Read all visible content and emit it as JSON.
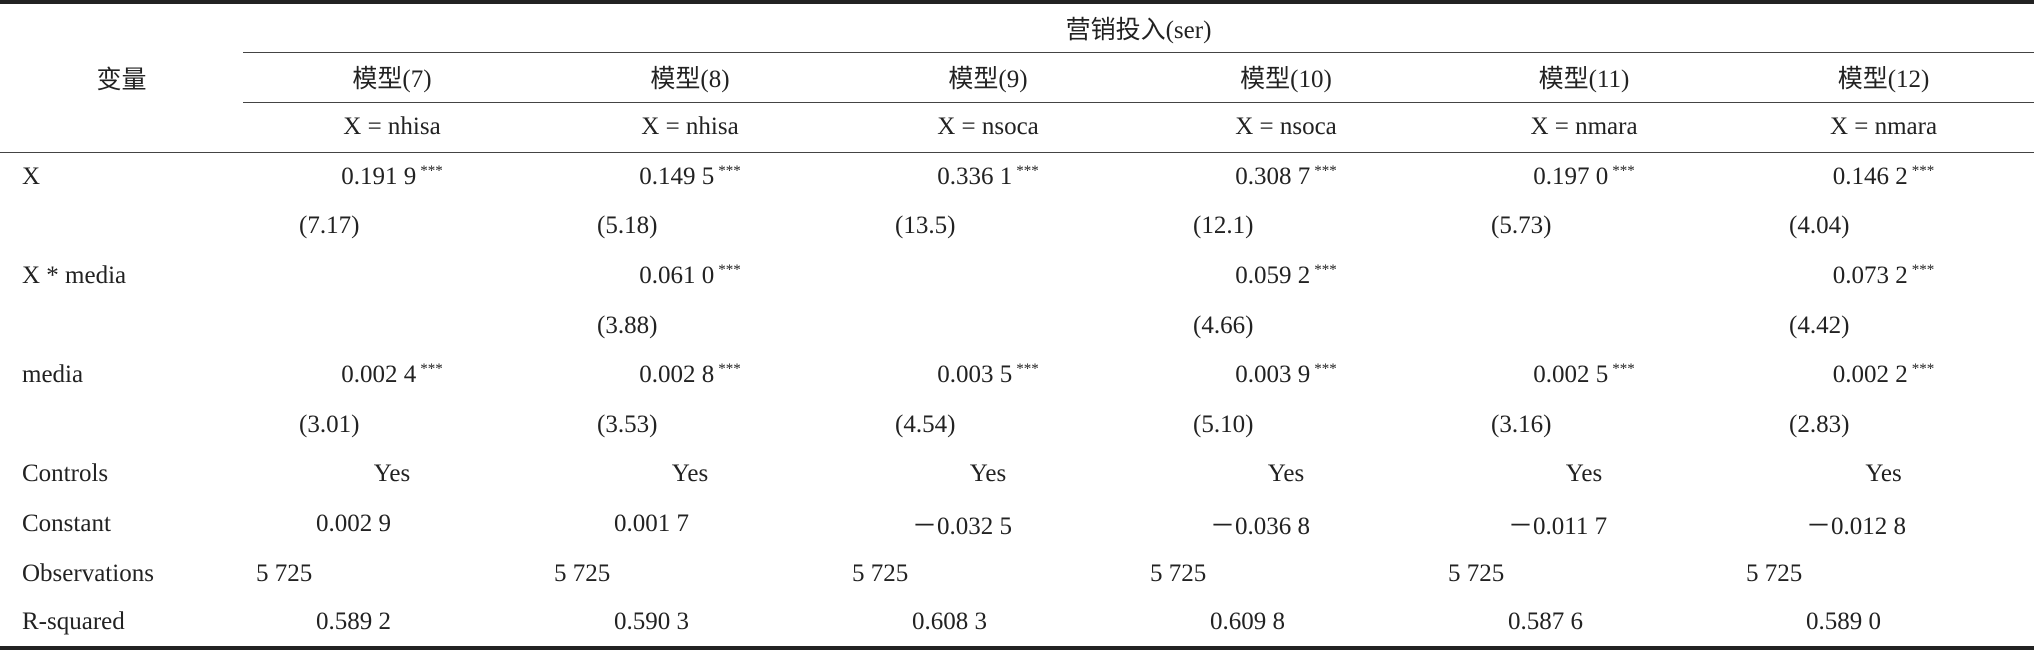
{
  "table": {
    "row_header": "变量",
    "group_header": "营销投入(ser)",
    "models": [
      "模型(7)",
      "模型(8)",
      "模型(9)",
      "模型(10)",
      "模型(11)",
      "模型(12)"
    ],
    "specs": [
      "X = nhisa",
      "X = nhisa",
      "X = nsoca",
      "X = nsoca",
      "X = nmara",
      "X = nmara"
    ],
    "rows": [
      {
        "label": "X",
        "cells": [
          {
            "value": "0.191 9",
            "sig": "***"
          },
          {
            "value": "0.149 5",
            "sig": "***"
          },
          {
            "value": "0.336 1",
            "sig": "***"
          },
          {
            "value": "0.308 7",
            "sig": "***"
          },
          {
            "value": "0.197 0",
            "sig": "***"
          },
          {
            "value": "0.146 2",
            "sig": "***"
          }
        ]
      },
      {
        "label": null,
        "cells": [
          "(7.17)",
          "(5.18)",
          "(13.5)",
          "(12.1)",
          "(5.73)",
          "(4.04)"
        ]
      },
      {
        "label": "X * media",
        "cells": [
          null,
          {
            "value": "0.061 0",
            "sig": "***"
          },
          null,
          {
            "value": "0.059 2",
            "sig": "***"
          },
          null,
          {
            "value": "0.073 2",
            "sig": "***"
          }
        ]
      },
      {
        "label": null,
        "cells": [
          null,
          "(3.88)",
          null,
          "(4.66)",
          null,
          "(4.42)"
        ]
      },
      {
        "label": "media",
        "cells": [
          {
            "value": "0.002 4",
            "sig": "***"
          },
          {
            "value": "0.002 8",
            "sig": "***"
          },
          {
            "value": "0.003 5",
            "sig": "***"
          },
          {
            "value": "0.003 9",
            "sig": "***"
          },
          {
            "value": "0.002 5",
            "sig": "***"
          },
          {
            "value": "0.002 2",
            "sig": "***"
          }
        ]
      },
      {
        "label": null,
        "cells": [
          "(3.01)",
          "(3.53)",
          "(4.54)",
          "(5.10)",
          "(3.16)",
          "(2.83)"
        ]
      },
      {
        "label": "Controls",
        "cells": [
          "Yes",
          "Yes",
          "Yes",
          "Yes",
          "Yes",
          "Yes"
        ]
      },
      {
        "label": "Constant",
        "cells": [
          "0.002 9",
          "0.001 7",
          "－0.032 5",
          "－0.036 8",
          "－0.011 7",
          "－0.012 8"
        ]
      },
      {
        "label": "Observations",
        "cells": [
          "5 725",
          "5 725",
          "5 725",
          "5 725",
          "5 725",
          "5 725"
        ]
      },
      {
        "label": "R-squared",
        "cells": [
          "0.589 2",
          "0.590 3",
          "0.608 3",
          "0.609 8",
          "0.587 6",
          "0.589 0"
        ]
      }
    ]
  }
}
